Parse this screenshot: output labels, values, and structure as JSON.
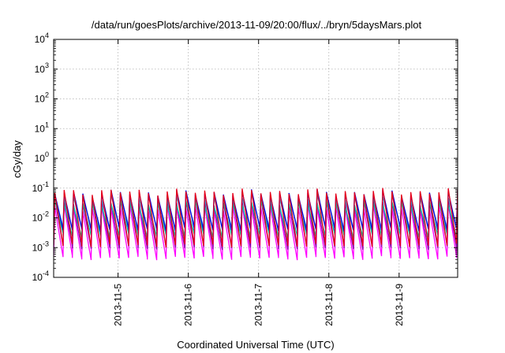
{
  "chart_data": {
    "type": "line",
    "title": "/data/run/goesPlots/archive/2013-11-09/20:00/flux/../bryn/5daysMars.plot",
    "xlabel": "Coordinated Universal Time (UTC)",
    "ylabel": "cGy/day",
    "y_scale": "log",
    "ylim": [
      0.0001,
      10000
    ],
    "y_ticks": [
      {
        "value": 0.0001,
        "base": "10",
        "exp": "-4"
      },
      {
        "value": 0.001,
        "base": "10",
        "exp": "-3"
      },
      {
        "value": 0.01,
        "base": "10",
        "exp": "-2"
      },
      {
        "value": 0.1,
        "base": "10",
        "exp": "-1"
      },
      {
        "value": 1,
        "base": "10",
        "exp": "0"
      },
      {
        "value": 10,
        "base": "10",
        "exp": "1"
      },
      {
        "value": 100,
        "base": "10",
        "exp": "2"
      },
      {
        "value": 1000,
        "base": "10",
        "exp": "3"
      },
      {
        "value": 10000,
        "base": "10",
        "exp": "4"
      }
    ],
    "xlim": [
      "2013-11-04T02:00",
      "2013-11-09T20:00"
    ],
    "x_ticks": [
      "2013-11-5",
      "2013-11-6",
      "2013-11-7",
      "2013-11-8",
      "2013-11-9"
    ],
    "x_tick_dates": [
      "2013-11-05T00:00",
      "2013-11-06T00:00",
      "2013-11-07T00:00",
      "2013-11-08T00:00",
      "2013-11-09T00:00"
    ],
    "grid": true,
    "legend": "none",
    "pattern": {
      "shape": "sawtooth",
      "period_hours": 3.2,
      "note_on_values": "periodic dose-rate sawtooth; each series rises sharply to its peak and decays to its trough"
    },
    "series": [
      {
        "color": "#e6001a",
        "peak": 0.075,
        "trough": 0.0012
      },
      {
        "color": "#0000dd",
        "peak": 0.068,
        "trough": 0.004
      },
      {
        "color": "#2aa0d8",
        "peak": 0.05,
        "trough": 0.0045
      },
      {
        "color": "#00c8a0",
        "peak": 0.03,
        "trough": 0.0025
      },
      {
        "color": "#8800aa",
        "peak": 0.035,
        "trough": 0.001
      },
      {
        "color": "#ff00ff",
        "peak": 0.022,
        "trough": 0.00045
      }
    ]
  }
}
